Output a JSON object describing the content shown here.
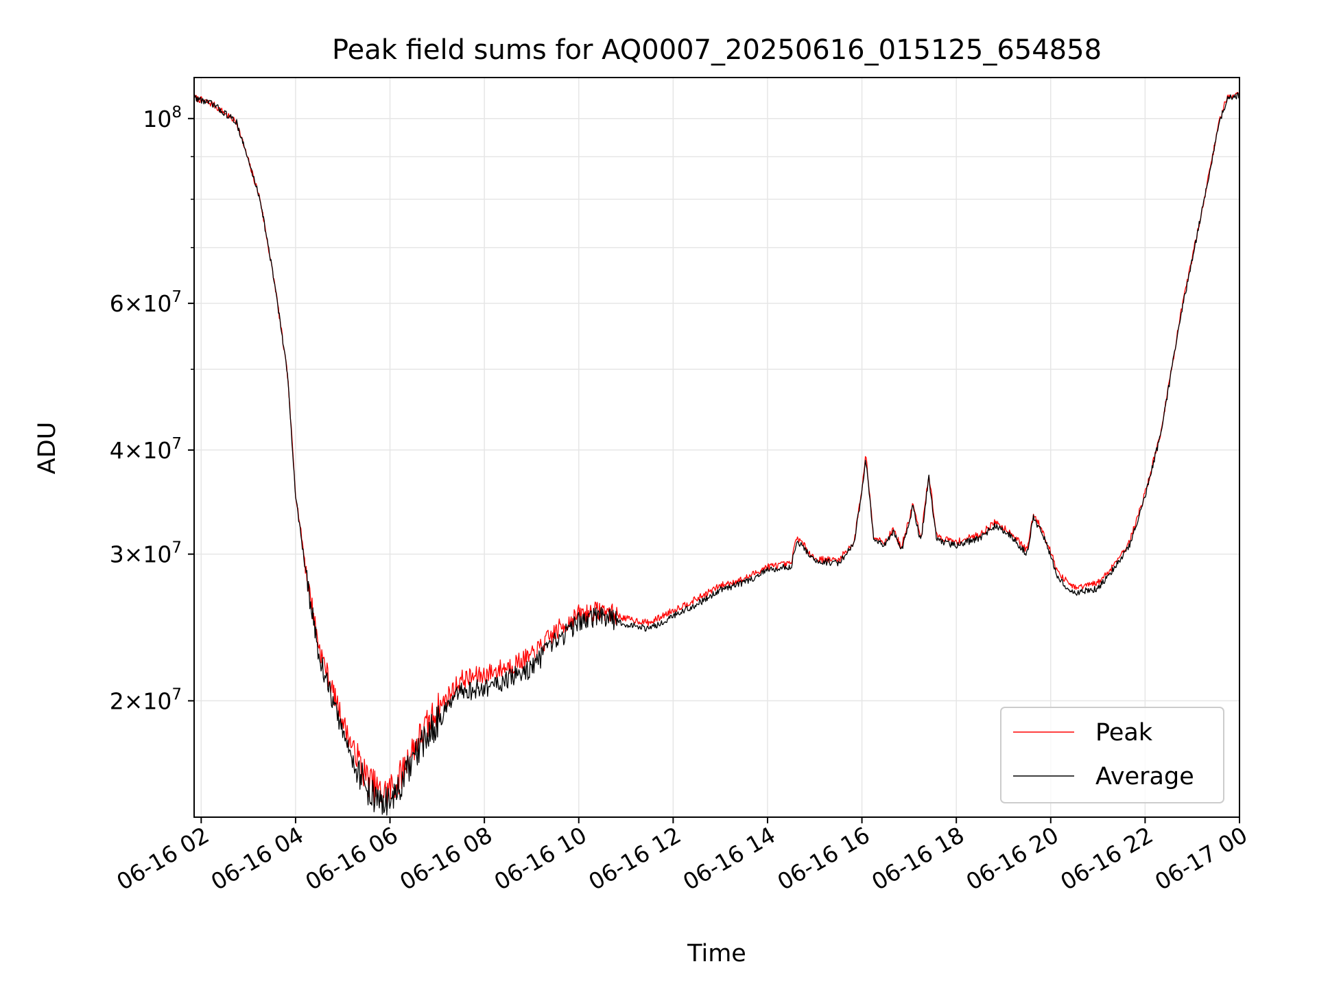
{
  "chart_data": {
    "type": "line",
    "title": "Peak field sums for AQ0007_20250616_015125_654858",
    "xlabel": "Time",
    "ylabel": "ADU",
    "yscale": "log",
    "grid": true,
    "legend_position": "lower right",
    "xlim": [
      "2025-06-16T01:51",
      "2025-06-17T00:00"
    ],
    "ylim": [
      14500000,
      112000000
    ],
    "x_ticks": [
      {
        "t": "2025-06-16T02:00",
        "label": "06-16 02"
      },
      {
        "t": "2025-06-16T04:00",
        "label": "06-16 04"
      },
      {
        "t": "2025-06-16T06:00",
        "label": "06-16 06"
      },
      {
        "t": "2025-06-16T08:00",
        "label": "06-16 08"
      },
      {
        "t": "2025-06-16T10:00",
        "label": "06-16 10"
      },
      {
        "t": "2025-06-16T12:00",
        "label": "06-16 12"
      },
      {
        "t": "2025-06-16T14:00",
        "label": "06-16 14"
      },
      {
        "t": "2025-06-16T16:00",
        "label": "06-16 16"
      },
      {
        "t": "2025-06-16T18:00",
        "label": "06-16 18"
      },
      {
        "t": "2025-06-16T20:00",
        "label": "06-16 20"
      },
      {
        "t": "2025-06-16T22:00",
        "label": "06-16 22"
      },
      {
        "t": "2025-06-17T00:00",
        "label": "06-17 00"
      }
    ],
    "y_ticks": [
      {
        "value": 20000000,
        "base": "2",
        "exp": "7"
      },
      {
        "value": 30000000,
        "base": "3",
        "exp": "7"
      },
      {
        "value": 40000000,
        "base": "4",
        "exp": "7"
      },
      {
        "value": 60000000,
        "base": "6",
        "exp": "7"
      },
      {
        "value": 100000000,
        "base": "",
        "exp": "8"
      }
    ],
    "y_minor_ticks": [
      50000000,
      70000000,
      80000000,
      90000000
    ],
    "series": [
      {
        "name": "Peak",
        "color": "#ff0000",
        "points": [
          [
            "2025-06-16T01:51",
            106000000
          ],
          [
            "2025-06-16T02:15",
            104000000
          ],
          [
            "2025-06-16T02:45",
            99000000
          ],
          [
            "2025-06-16T03:15",
            80000000
          ],
          [
            "2025-06-16T03:35",
            62000000
          ],
          [
            "2025-06-16T03:50",
            49000000
          ],
          [
            "2025-06-16T04:00",
            35500000
          ],
          [
            "2025-06-16T04:15",
            28000000
          ],
          [
            "2025-06-16T04:30",
            23200000
          ],
          [
            "2025-06-16T04:50",
            20200000
          ],
          [
            "2025-06-16T05:10",
            17800000
          ],
          [
            "2025-06-16T05:30",
            16200000
          ],
          [
            "2025-06-16T05:50",
            15400000
          ],
          [
            "2025-06-16T06:10",
            16000000
          ],
          [
            "2025-06-16T06:30",
            17600000
          ],
          [
            "2025-06-16T07:00",
            19500000
          ],
          [
            "2025-06-16T07:30",
            21200000
          ],
          [
            "2025-06-16T08:00",
            21500000
          ],
          [
            "2025-06-16T08:30",
            22000000
          ],
          [
            "2025-06-16T09:00",
            22600000
          ],
          [
            "2025-06-16T09:30",
            24200000
          ],
          [
            "2025-06-16T10:00",
            25400000
          ],
          [
            "2025-06-16T10:30",
            25700000
          ],
          [
            "2025-06-16T11:00",
            25100000
          ],
          [
            "2025-06-16T11:30",
            24800000
          ],
          [
            "2025-06-16T12:00",
            25700000
          ],
          [
            "2025-06-16T12:30",
            26500000
          ],
          [
            "2025-06-16T13:00",
            27500000
          ],
          [
            "2025-06-16T13:30",
            28000000
          ],
          [
            "2025-06-16T14:00",
            29000000
          ],
          [
            "2025-06-16T14:30",
            29200000
          ],
          [
            "2025-06-16T14:37",
            31500000
          ],
          [
            "2025-06-16T15:00",
            29600000
          ],
          [
            "2025-06-16T15:30",
            29500000
          ],
          [
            "2025-06-16T15:50",
            31000000
          ],
          [
            "2025-06-16T16:00",
            36000000
          ],
          [
            "2025-06-16T16:05",
            39500000
          ],
          [
            "2025-06-16T16:15",
            31500000
          ],
          [
            "2025-06-16T16:30",
            31000000
          ],
          [
            "2025-06-16T16:40",
            32200000
          ],
          [
            "2025-06-16T16:50",
            30500000
          ],
          [
            "2025-06-16T17:00",
            33000000
          ],
          [
            "2025-06-16T17:05",
            34500000
          ],
          [
            "2025-06-16T17:15",
            31200000
          ],
          [
            "2025-06-16T17:25",
            37500000
          ],
          [
            "2025-06-16T17:35",
            31500000
          ],
          [
            "2025-06-16T18:00",
            31000000
          ],
          [
            "2025-06-16T18:30",
            31700000
          ],
          [
            "2025-06-16T18:50",
            32800000
          ],
          [
            "2025-06-16T19:10",
            31800000
          ],
          [
            "2025-06-16T19:30",
            30300000
          ],
          [
            "2025-06-16T19:38",
            33500000
          ],
          [
            "2025-06-16T19:50",
            32000000
          ],
          [
            "2025-06-16T20:10",
            28400000
          ],
          [
            "2025-06-16T20:30",
            27300000
          ],
          [
            "2025-06-16T21:00",
            27700000
          ],
          [
            "2025-06-16T21:15",
            28700000
          ],
          [
            "2025-06-16T21:40",
            31000000
          ],
          [
            "2025-06-16T22:00",
            35500000
          ],
          [
            "2025-06-16T22:20",
            42000000
          ],
          [
            "2025-06-16T22:45",
            58000000
          ],
          [
            "2025-06-16T23:15",
            80000000
          ],
          [
            "2025-06-16T23:35",
            100000000
          ],
          [
            "2025-06-16T23:45",
            106500000
          ],
          [
            "2025-06-17T00:00",
            107000000
          ]
        ]
      },
      {
        "name": "Average",
        "color": "#000000",
        "points": [
          [
            "2025-06-16T01:51",
            106000000
          ],
          [
            "2025-06-16T02:15",
            104000000
          ],
          [
            "2025-06-16T02:45",
            99000000
          ],
          [
            "2025-06-16T03:15",
            80000000
          ],
          [
            "2025-06-16T03:35",
            62000000
          ],
          [
            "2025-06-16T03:50",
            49000000
          ],
          [
            "2025-06-16T04:00",
            35300000
          ],
          [
            "2025-06-16T04:15",
            27600000
          ],
          [
            "2025-06-16T04:30",
            22600000
          ],
          [
            "2025-06-16T04:50",
            19600000
          ],
          [
            "2025-06-16T05:10",
            17200000
          ],
          [
            "2025-06-16T05:30",
            15700000
          ],
          [
            "2025-06-16T05:50",
            15000000
          ],
          [
            "2025-06-16T06:10",
            15500000
          ],
          [
            "2025-06-16T06:30",
            17000000
          ],
          [
            "2025-06-16T07:00",
            18900000
          ],
          [
            "2025-06-16T07:30",
            20500000
          ],
          [
            "2025-06-16T08:00",
            20700000
          ],
          [
            "2025-06-16T08:30",
            21200000
          ],
          [
            "2025-06-16T09:00",
            21900000
          ],
          [
            "2025-06-16T09:30",
            23500000
          ],
          [
            "2025-06-16T10:00",
            24900000
          ],
          [
            "2025-06-16T10:30",
            25300000
          ],
          [
            "2025-06-16T11:00",
            24700000
          ],
          [
            "2025-06-16T11:30",
            24400000
          ],
          [
            "2025-06-16T12:00",
            25300000
          ],
          [
            "2025-06-16T12:30",
            26100000
          ],
          [
            "2025-06-16T13:00",
            27200000
          ],
          [
            "2025-06-16T13:30",
            27700000
          ],
          [
            "2025-06-16T14:00",
            28700000
          ],
          [
            "2025-06-16T14:30",
            29000000
          ],
          [
            "2025-06-16T14:37",
            31200000
          ],
          [
            "2025-06-16T15:00",
            29400000
          ],
          [
            "2025-06-16T15:30",
            29300000
          ],
          [
            "2025-06-16T15:50",
            30800000
          ],
          [
            "2025-06-16T16:00",
            35800000
          ],
          [
            "2025-06-16T16:05",
            39000000
          ],
          [
            "2025-06-16T16:15",
            31200000
          ],
          [
            "2025-06-16T16:30",
            30700000
          ],
          [
            "2025-06-16T16:40",
            32000000
          ],
          [
            "2025-06-16T16:50",
            30200000
          ],
          [
            "2025-06-16T17:00",
            32800000
          ],
          [
            "2025-06-16T17:05",
            34300000
          ],
          [
            "2025-06-16T17:15",
            31000000
          ],
          [
            "2025-06-16T17:25",
            37200000
          ],
          [
            "2025-06-16T17:35",
            31200000
          ],
          [
            "2025-06-16T18:00",
            30700000
          ],
          [
            "2025-06-16T18:30",
            31400000
          ],
          [
            "2025-06-16T18:50",
            32500000
          ],
          [
            "2025-06-16T19:10",
            31500000
          ],
          [
            "2025-06-16T19:30",
            30000000
          ],
          [
            "2025-06-16T19:38",
            33200000
          ],
          [
            "2025-06-16T19:50",
            31700000
          ],
          [
            "2025-06-16T20:10",
            28000000
          ],
          [
            "2025-06-16T20:30",
            26900000
          ],
          [
            "2025-06-16T21:00",
            27300000
          ],
          [
            "2025-06-16T21:15",
            28400000
          ],
          [
            "2025-06-16T21:40",
            30700000
          ],
          [
            "2025-06-16T22:00",
            35300000
          ],
          [
            "2025-06-16T22:20",
            41800000
          ],
          [
            "2025-06-16T22:45",
            57800000
          ],
          [
            "2025-06-16T23:15",
            79800000
          ],
          [
            "2025-06-16T23:35",
            99500000
          ],
          [
            "2025-06-16T23:45",
            106000000
          ],
          [
            "2025-06-17T00:00",
            106500000
          ]
        ]
      }
    ]
  }
}
